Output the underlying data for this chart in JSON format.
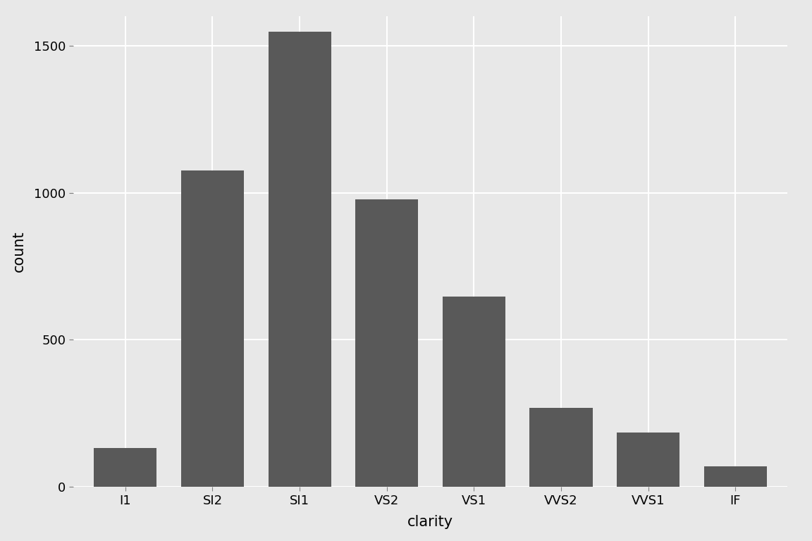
{
  "categories": [
    "I1",
    "SI2",
    "SI1",
    "VS2",
    "VS1",
    "VVS2",
    "VVS1",
    "IF"
  ],
  "values": [
    131,
    1076,
    1548,
    978,
    648,
    268,
    186,
    71
  ],
  "bar_color": "#595959",
  "xlabel": "clarity",
  "ylabel": "count",
  "ylim": [
    0,
    1600
  ],
  "yticks": [
    0,
    500,
    1000,
    1500
  ],
  "background_color": "#e8e8e8",
  "panel_background": "#e8e8e8",
  "grid_color": "#ffffff",
  "axis_label_fontsize": 15,
  "tick_fontsize": 13
}
